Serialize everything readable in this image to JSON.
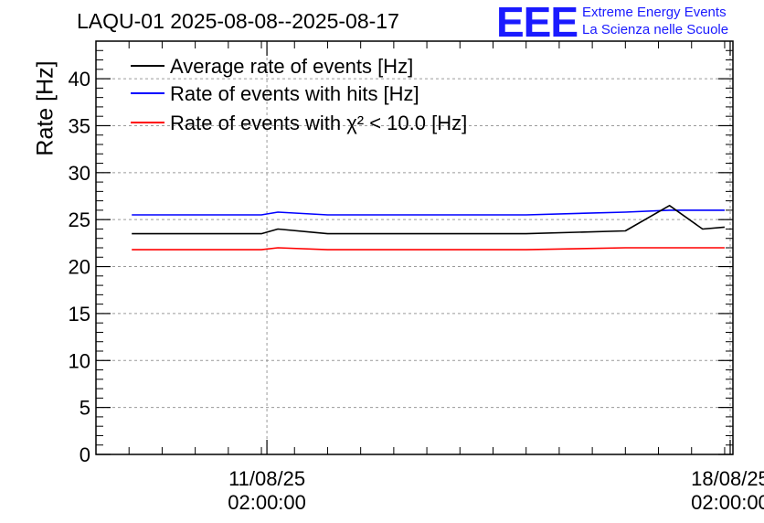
{
  "header": {
    "title": "LAQU-01 2025-08-08--2025-08-17",
    "logo_letters": "EEE",
    "logo_line1": "Extreme Energy Events",
    "logo_line2": "La Scienza nelle Scuole"
  },
  "chart_data": {
    "type": "line",
    "title": "LAQU-01 2025-08-08--2025-08-17",
    "xlabel": "",
    "ylabel": "Rate [Hz]",
    "xlim": [
      "2025-08-08 12:00",
      "2025-08-18 03:00"
    ],
    "ylim": [
      0,
      44
    ],
    "yticks": [
      0,
      5,
      10,
      15,
      20,
      25,
      30,
      35,
      40
    ],
    "xticks": [
      {
        "x": "2025-08-11 02:00:00",
        "label_date": "11/08/25",
        "label_time": "02:00:00"
      },
      {
        "x": "2025-08-18 02:00:00",
        "label_date": "18/08/25",
        "label_time": "02:00:00"
      }
    ],
    "grid": true,
    "legend_position": "top-left",
    "series": [
      {
        "name": "Average rate of events [Hz]",
        "color": "#000000",
        "x": [
          "2025-08-09 01:00",
          "2025-08-10 00:00",
          "2025-08-11 00:00",
          "2025-08-11 06:00",
          "2025-08-12 00:00",
          "2025-08-13 12:00",
          "2025-08-15 00:00",
          "2025-08-16 12:00",
          "2025-08-17 04:00",
          "2025-08-17 16:00",
          "2025-08-18 00:00"
        ],
        "values": [
          23.5,
          23.5,
          23.5,
          24.0,
          23.5,
          23.5,
          23.5,
          23.8,
          26.5,
          24.0,
          24.2
        ]
      },
      {
        "name": "Rate of events with hits [Hz]",
        "color": "#0000ff",
        "x": [
          "2025-08-09 01:00",
          "2025-08-10 00:00",
          "2025-08-11 00:00",
          "2025-08-11 06:00",
          "2025-08-12 00:00",
          "2025-08-13 12:00",
          "2025-08-15 00:00",
          "2025-08-16 12:00",
          "2025-08-17 04:00",
          "2025-08-17 16:00",
          "2025-08-18 00:00"
        ],
        "values": [
          25.5,
          25.5,
          25.5,
          25.8,
          25.5,
          25.5,
          25.5,
          25.8,
          26.0,
          26.0,
          26.0
        ]
      },
      {
        "name": "Rate of events with χ² < 10.0 [Hz]",
        "color": "#ff0000",
        "x": [
          "2025-08-09 01:00",
          "2025-08-10 00:00",
          "2025-08-11 00:00",
          "2025-08-11 06:00",
          "2025-08-12 00:00",
          "2025-08-13 12:00",
          "2025-08-15 00:00",
          "2025-08-16 12:00",
          "2025-08-17 04:00",
          "2025-08-17 16:00",
          "2025-08-18 00:00"
        ],
        "values": [
          21.8,
          21.8,
          21.8,
          22.0,
          21.8,
          21.8,
          21.8,
          22.0,
          22.0,
          22.0,
          22.0
        ]
      }
    ]
  }
}
